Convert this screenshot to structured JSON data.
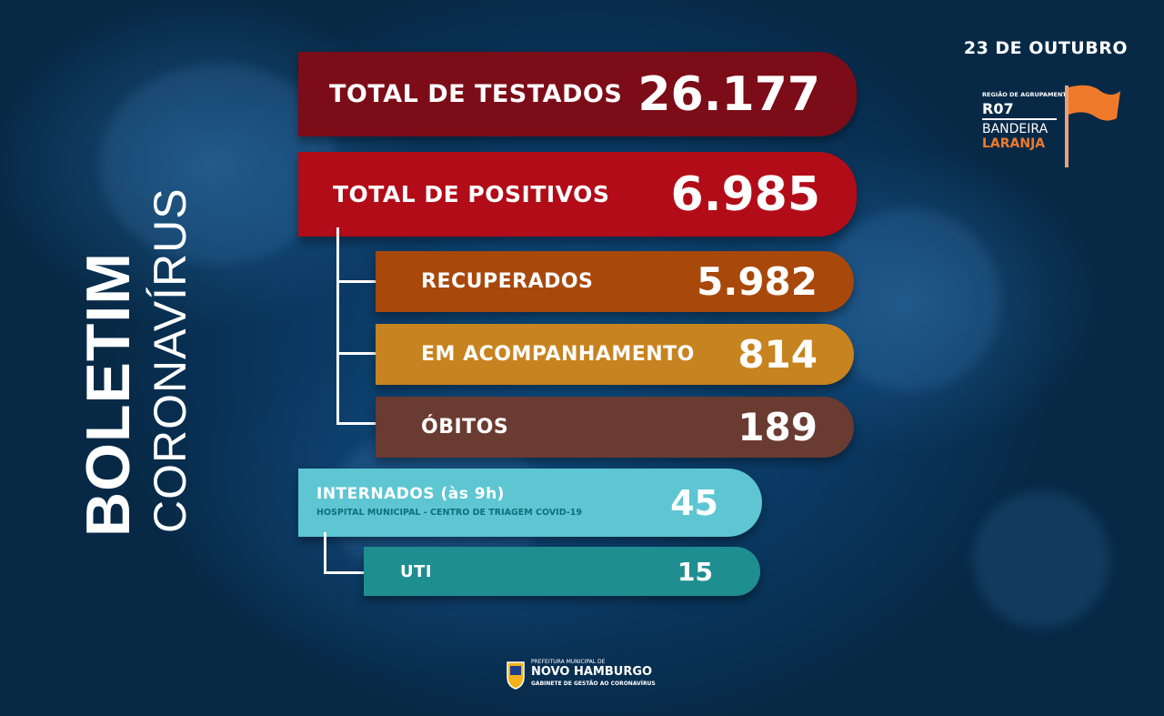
{
  "date": "23 DE OUTUBRO",
  "region": {
    "caption": "REGIÃO DE AGRUPAMENTO",
    "code": "R07",
    "flag_word": "BANDEIRA",
    "flag_color_name": "LARANJA",
    "flag_color": "#f07a2b"
  },
  "title": {
    "line1": "BOLETIM",
    "line2": "CORONAVÍRUS"
  },
  "testados": {
    "label": "TOTAL DE TESTADOS",
    "value": "26.177",
    "color": "#7c0c17"
  },
  "positivos": {
    "label": "TOTAL DE POSITIVOS",
    "value": "6.985",
    "color": "#b20c18"
  },
  "recuperados": {
    "label": "RECUPERADOS",
    "value": "5.982",
    "color": "#a8480b"
  },
  "acompanhamento": {
    "label": "EM ACOMPANHAMENTO",
    "value": "814",
    "color": "#c7831f"
  },
  "obitos": {
    "label": "ÓBITOS",
    "value": "189",
    "color": "#6a3b31"
  },
  "internados": {
    "label": "INTERNADOS (às 9h)",
    "sublabel": "HOSPITAL MUNICIPAL - CENTRO DE TRIAGEM COVID-19",
    "value": "45",
    "color": "#5dc6d2"
  },
  "uti": {
    "label": "UTI",
    "value": "15",
    "color": "#1f8e91"
  },
  "footer": {
    "top_line": "PREFEITURA MUNICIPAL DE",
    "city": "NOVO HAMBURGO",
    "bottom_line": "GABINETE DE GESTÃO AO CORONAVÍRUS"
  }
}
